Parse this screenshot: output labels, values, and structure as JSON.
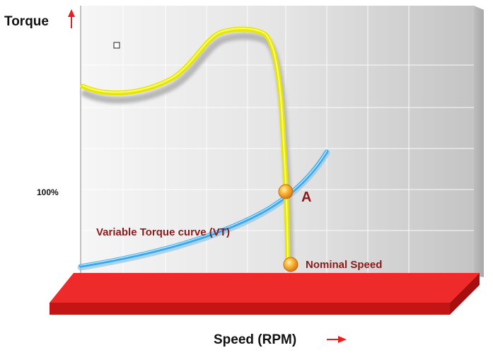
{
  "diagram": {
    "y_axis_label": "Torque",
    "x_axis_label": "Speed (RPM)",
    "tick_100": "100%",
    "vt_label": "Variable Torque curve (VT)",
    "point_a_label": "A",
    "nominal_label": "Nominal Speed",
    "colors": {
      "motor_curve": "#ecec2a",
      "vt_curve": "#3aa8ec",
      "floor": "#ee2a2a",
      "arrow": "#ee1c1c",
      "label_dark_red": "#8b1a1a",
      "marker": "#f4a020"
    }
  }
}
